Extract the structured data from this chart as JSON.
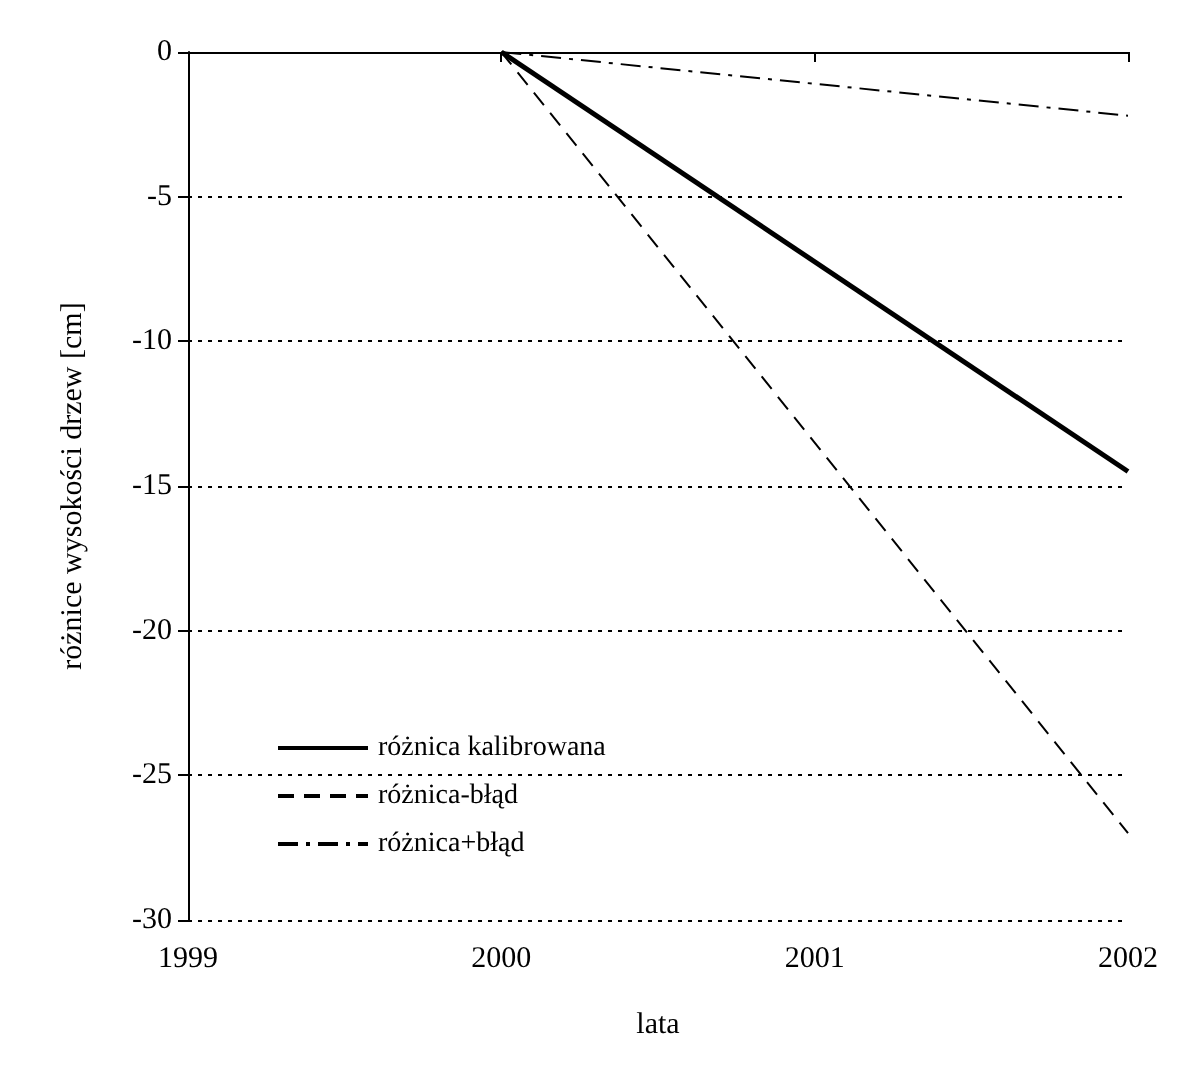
{
  "chart_data": {
    "type": "line",
    "xlabel": "lata",
    "ylabel": "różnice wysokości drzew [cm]",
    "xlim": [
      1999,
      2002
    ],
    "xticks": [
      1999,
      2000,
      2001,
      2002
    ],
    "ylim": [
      -30,
      0
    ],
    "yticks": [
      -30,
      -25,
      -20,
      -15,
      -10,
      -5,
      0
    ],
    "grid": "y",
    "legend": "bottom left",
    "marker": "none",
    "x": [
      2000,
      2002
    ],
    "series": [
      {
        "name": "różnica kalibrowana",
        "color": "#000000",
        "line_style": "solid",
        "values": [
          0,
          -14.5
        ]
      },
      {
        "name": "różnica-błąd",
        "color": "#000000",
        "line_style": "dashed",
        "values": [
          0,
          -27
        ]
      },
      {
        "name": "różnica+błąd",
        "color": "#000000",
        "line_style": "dashdot",
        "values": [
          0,
          -2.2
        ]
      }
    ]
  }
}
